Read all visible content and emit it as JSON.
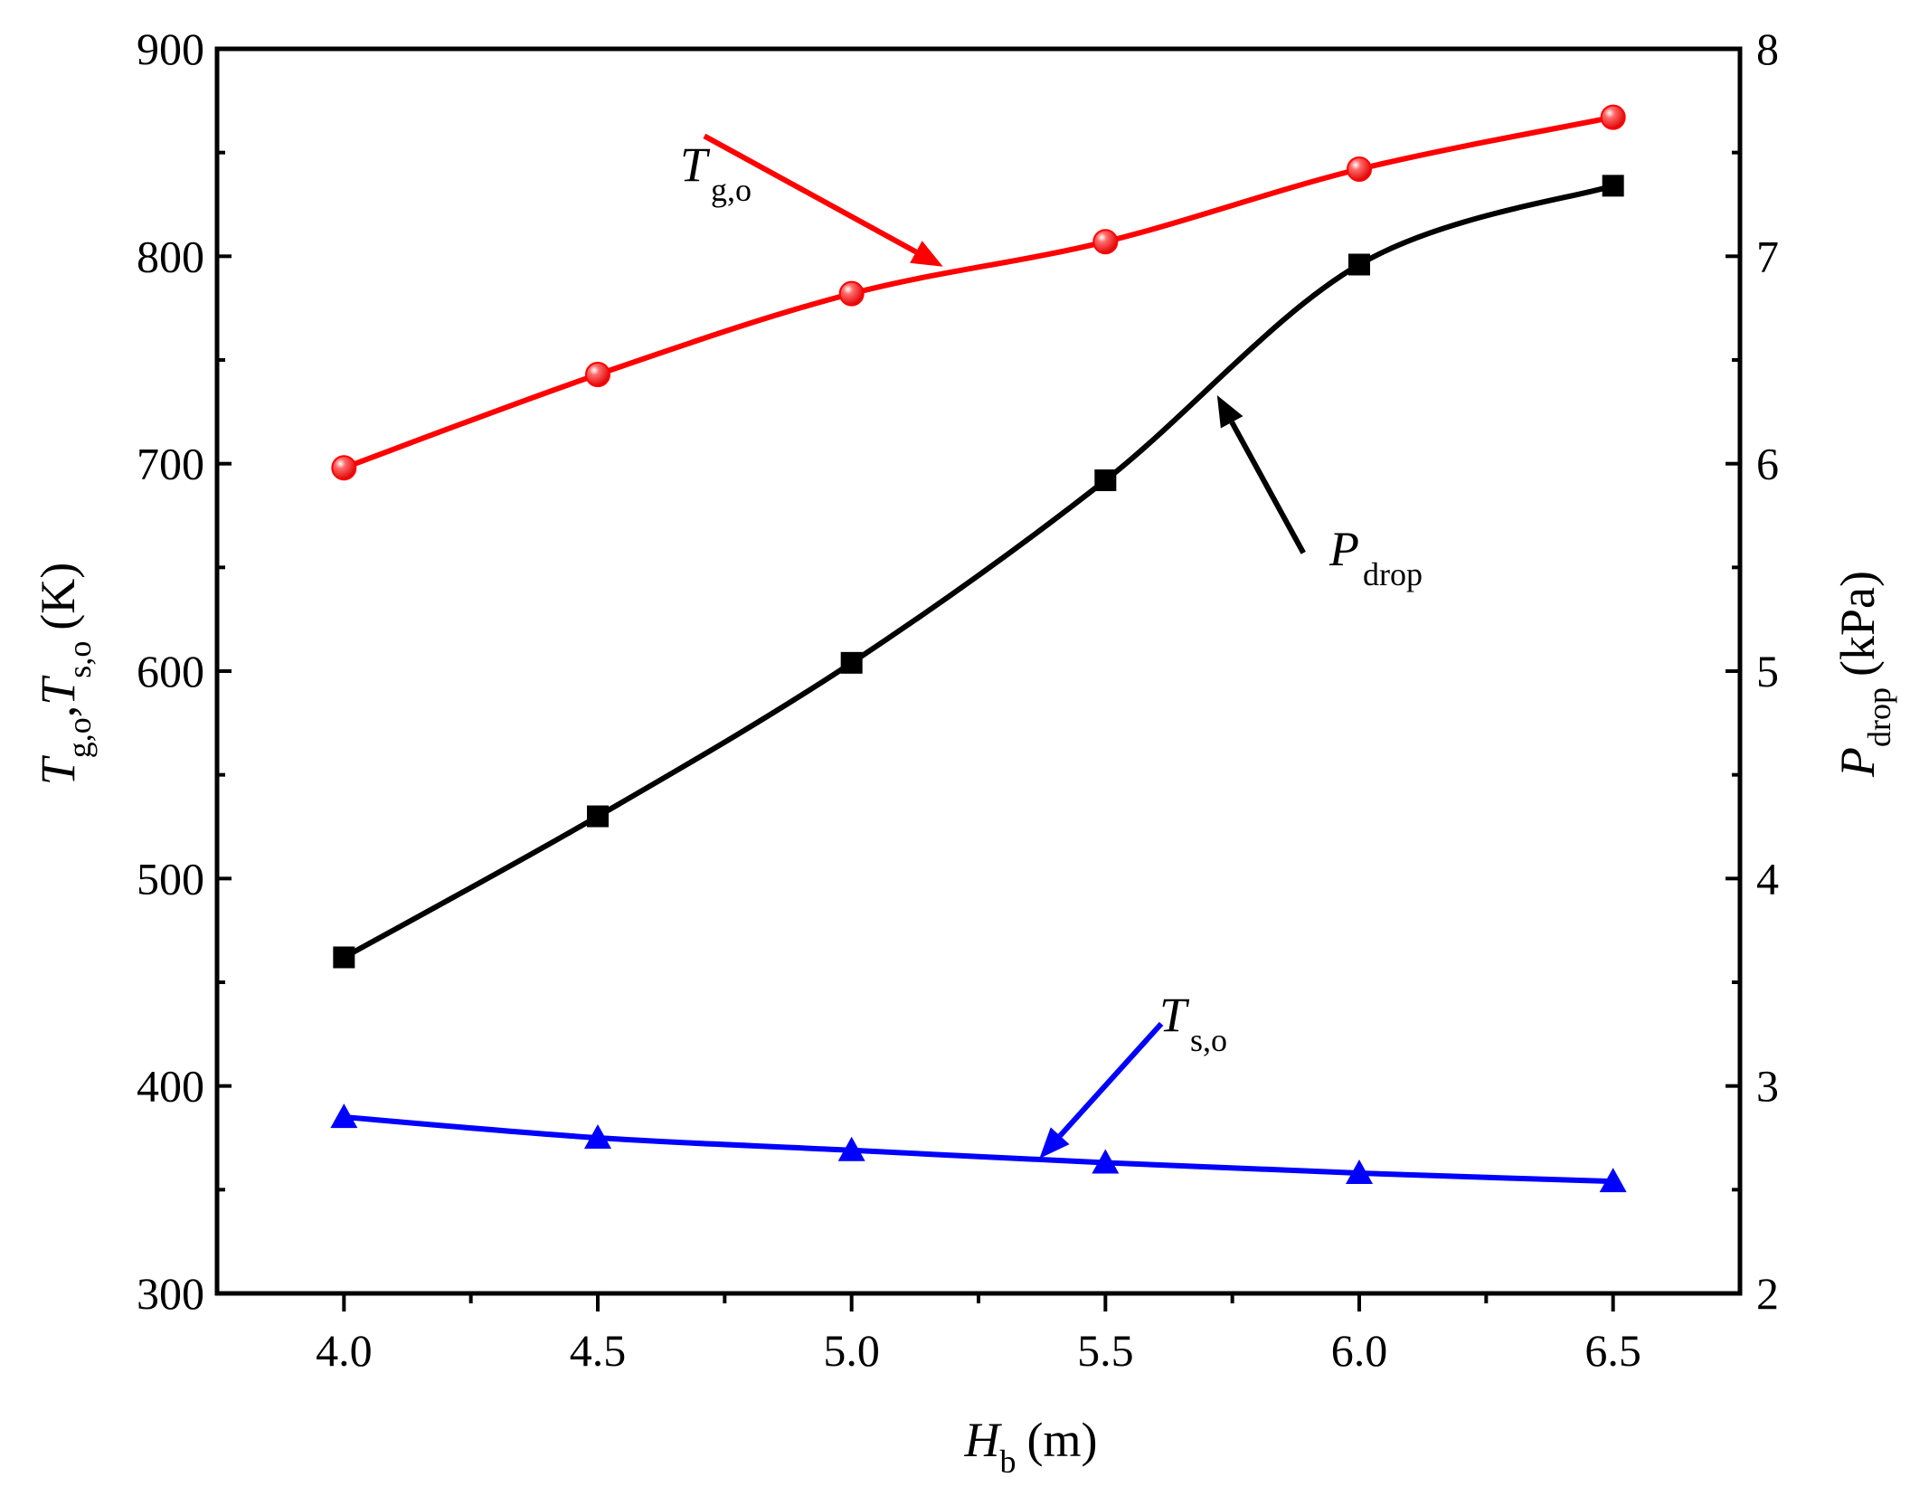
{
  "chart_data": {
    "type": "line",
    "title": "",
    "x": [
      4.0,
      4.5,
      5.0,
      5.5,
      6.0,
      6.5
    ],
    "x_tick_labels": [
      "4.0",
      "4.5",
      "5.0",
      "5.5",
      "6.0",
      "6.5"
    ],
    "xlim": [
      3.75,
      6.75
    ],
    "xlabel": {
      "main": "H",
      "sub": "b",
      "unit": "(m)"
    },
    "y_left": {
      "lim": [
        300,
        900
      ],
      "ticks": [
        300,
        400,
        500,
        600,
        700,
        800,
        900
      ],
      "tick_labels": [
        "300",
        "400",
        "500",
        "600",
        "700",
        "800",
        "900"
      ],
      "label": {
        "t1": "T",
        "s1": "g,o",
        "comma": ",",
        "t2": "T",
        "s2": "s,o",
        "unit": "(K)"
      }
    },
    "y_right": {
      "lim": [
        2,
        8
      ],
      "ticks": [
        2,
        3,
        4,
        5,
        6,
        7,
        8
      ],
      "tick_labels": [
        "2",
        "3",
        "4",
        "5",
        "6",
        "7",
        "8"
      ],
      "label": {
        "main": "P",
        "sub": "drop",
        "unit": "(kPa)"
      }
    },
    "series": [
      {
        "name": "T_g,o",
        "label_main": "T",
        "label_sub": "g,o",
        "axis": "left",
        "color": "#ff0000",
        "marker": "circle",
        "values": [
          698,
          743,
          782,
          807,
          842,
          867
        ]
      },
      {
        "name": "P_drop",
        "label_main": "P",
        "label_sub": "drop",
        "axis": "right",
        "color": "#000000",
        "marker": "square",
        "values": [
          3.62,
          4.3,
          5.04,
          5.92,
          6.96,
          7.34
        ]
      },
      {
        "name": "T_s,o",
        "label_main": "T",
        "label_sub": "s,o",
        "axis": "left",
        "color": "#0000ff",
        "marker": "triangle",
        "values": [
          385,
          375,
          369,
          363,
          358,
          354
        ]
      }
    ]
  }
}
